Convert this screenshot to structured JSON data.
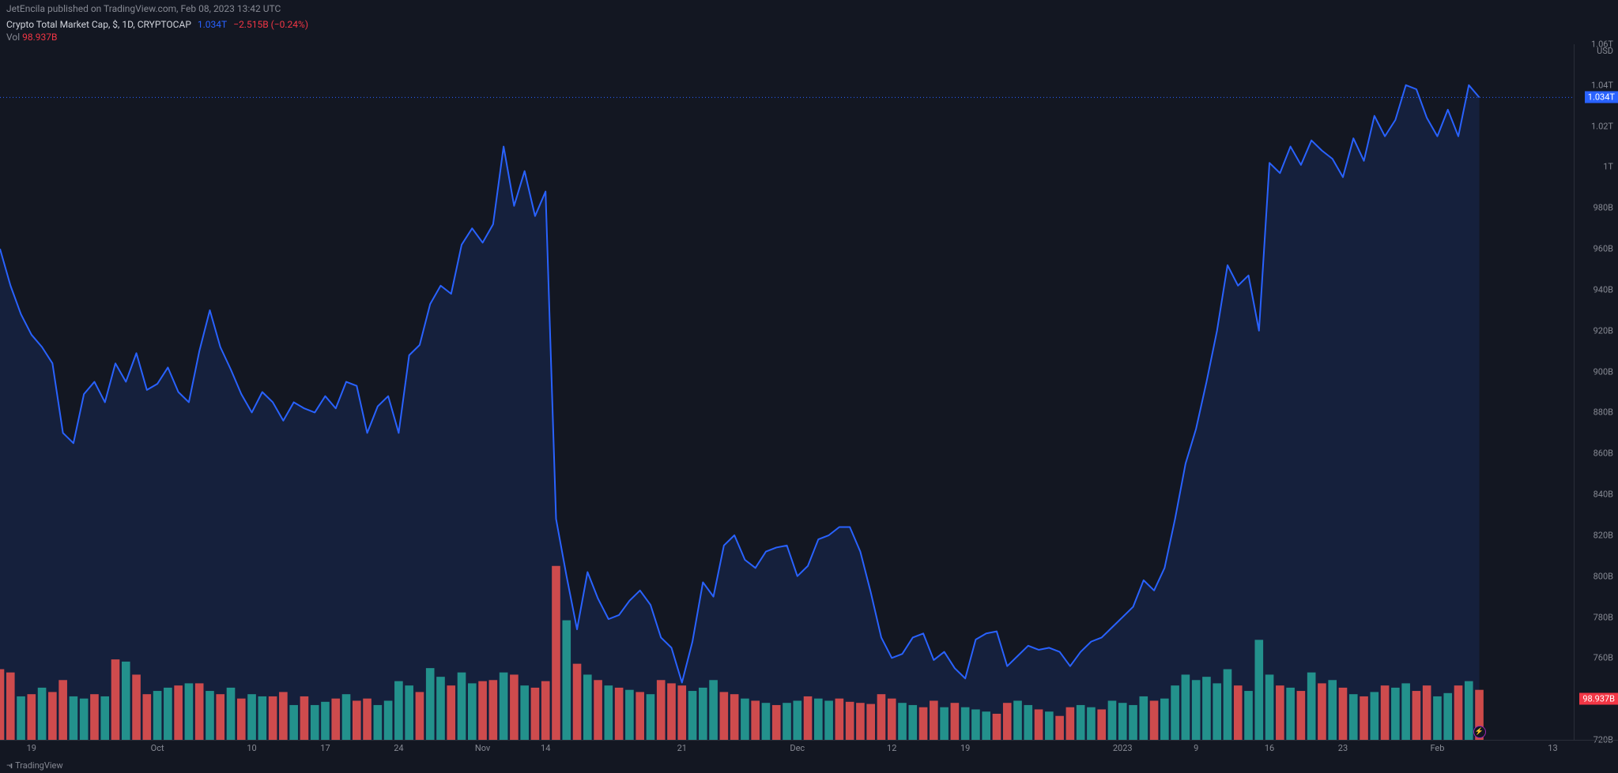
{
  "header": {
    "publish_text": "JetEncila published on TradingView.com, Feb 08, 2023 13:42 UTC"
  },
  "legend": {
    "symbol": "Crypto Total Market Cap, $, 1D, CRYPTOCAP",
    "price": "1.034T",
    "change": "−2.515B (−0.24%)"
  },
  "volume_legend": {
    "label": "Vol",
    "value": "98.937B"
  },
  "footer": {
    "brand": "TradingView"
  },
  "chart": {
    "type": "area+bar",
    "background_color": "#131722",
    "grid_color": "#2a2e39",
    "line_color": "#2962ff",
    "area_fill_color": "rgba(41,98,255,0.12)",
    "line_width": 2,
    "vol_up_color": "#26a69a",
    "vol_down_color": "#ef5350",
    "currency_label": "USD",
    "y_min": 720,
    "y_max": 1060,
    "y_ticks": [
      {
        "v": 720,
        "label": "720B"
      },
      {
        "v": 760,
        "label": "760B"
      },
      {
        "v": 780,
        "label": "780B"
      },
      {
        "v": 800,
        "label": "800B"
      },
      {
        "v": 820,
        "label": "820B"
      },
      {
        "v": 840,
        "label": "840B"
      },
      {
        "v": 860,
        "label": "860B"
      },
      {
        "v": 880,
        "label": "880B"
      },
      {
        "v": 900,
        "label": "900B"
      },
      {
        "v": 920,
        "label": "920B"
      },
      {
        "v": 940,
        "label": "940B"
      },
      {
        "v": 960,
        "label": "960B"
      },
      {
        "v": 980,
        "label": "980B"
      },
      {
        "v": 1000,
        "label": "1T"
      },
      {
        "v": 1020,
        "label": "1.02T"
      },
      {
        "v": 1040,
        "label": "1.04T"
      },
      {
        "v": 1060,
        "label": "1.06T"
      }
    ],
    "price_badge": {
      "v": 1034,
      "label": "1.034T",
      "bg": "#2962ff"
    },
    "vol_badge": {
      "v": 740,
      "label": "98.937B",
      "bg": "#f23645"
    },
    "vol_baseline": 720,
    "vol_max_display": 805,
    "x_ticks": [
      {
        "i": 3,
        "label": "19"
      },
      {
        "i": 15,
        "label": "Oct"
      },
      {
        "i": 24,
        "label": "10"
      },
      {
        "i": 31,
        "label": "17"
      },
      {
        "i": 38,
        "label": "24"
      },
      {
        "i": 46,
        "label": "Nov"
      },
      {
        "i": 52,
        "label": "14"
      },
      {
        "i": 65,
        "label": "21"
      },
      {
        "i": 76,
        "label": "Dec"
      },
      {
        "i": 85,
        "label": "12"
      },
      {
        "i": 92,
        "label": "19"
      },
      {
        "i": 107,
        "label": "2023"
      },
      {
        "i": 114,
        "label": "9"
      },
      {
        "i": 121,
        "label": "16"
      },
      {
        "i": 128,
        "label": "23"
      },
      {
        "i": 137,
        "label": "Feb"
      },
      {
        "i": 148,
        "label": "13"
      }
    ],
    "series": [
      {
        "v": 960,
        "vol": 65,
        "up": false
      },
      {
        "v": 942,
        "vol": 62,
        "up": false
      },
      {
        "v": 928,
        "vol": 40,
        "up": true
      },
      {
        "v": 918,
        "vol": 42,
        "up": false
      },
      {
        "v": 912,
        "vol": 48,
        "up": true
      },
      {
        "v": 904,
        "vol": 44,
        "up": false
      },
      {
        "v": 870,
        "vol": 55,
        "up": false
      },
      {
        "v": 865,
        "vol": 40,
        "up": true
      },
      {
        "v": 889,
        "vol": 38,
        "up": true
      },
      {
        "v": 895,
        "vol": 42,
        "up": false
      },
      {
        "v": 885,
        "vol": 40,
        "up": true
      },
      {
        "v": 904,
        "vol": 74,
        "up": false
      },
      {
        "v": 895,
        "vol": 72,
        "up": true
      },
      {
        "v": 909,
        "vol": 60,
        "up": false
      },
      {
        "v": 891,
        "vol": 42,
        "up": false
      },
      {
        "v": 894,
        "vol": 45,
        "up": true
      },
      {
        "v": 902,
        "vol": 48,
        "up": true
      },
      {
        "v": 890,
        "vol": 50,
        "up": false
      },
      {
        "v": 885,
        "vol": 52,
        "up": true
      },
      {
        "v": 910,
        "vol": 52,
        "up": false
      },
      {
        "v": 930,
        "vol": 45,
        "up": true
      },
      {
        "v": 912,
        "vol": 42,
        "up": false
      },
      {
        "v": 901,
        "vol": 48,
        "up": true
      },
      {
        "v": 889,
        "vol": 38,
        "up": false
      },
      {
        "v": 880,
        "vol": 42,
        "up": true
      },
      {
        "v": 890,
        "vol": 40,
        "up": true
      },
      {
        "v": 885,
        "vol": 40,
        "up": false
      },
      {
        "v": 876,
        "vol": 44,
        "up": false
      },
      {
        "v": 885,
        "vol": 32,
        "up": true
      },
      {
        "v": 882,
        "vol": 40,
        "up": false
      },
      {
        "v": 880,
        "vol": 32,
        "up": true
      },
      {
        "v": 888,
        "vol": 35,
        "up": true
      },
      {
        "v": 882,
        "vol": 38,
        "up": false
      },
      {
        "v": 895,
        "vol": 42,
        "up": true
      },
      {
        "v": 893,
        "vol": 36,
        "up": false
      },
      {
        "v": 870,
        "vol": 38,
        "up": false
      },
      {
        "v": 883,
        "vol": 32,
        "up": true
      },
      {
        "v": 888,
        "vol": 36,
        "up": true
      },
      {
        "v": 870,
        "vol": 54,
        "up": true
      },
      {
        "v": 908,
        "vol": 50,
        "up": true
      },
      {
        "v": 913,
        "vol": 44,
        "up": false
      },
      {
        "v": 933,
        "vol": 66,
        "up": true
      },
      {
        "v": 942,
        "vol": 58,
        "up": true
      },
      {
        "v": 938,
        "vol": 50,
        "up": false
      },
      {
        "v": 962,
        "vol": 62,
        "up": true
      },
      {
        "v": 970,
        "vol": 52,
        "up": true
      },
      {
        "v": 963,
        "vol": 54,
        "up": false
      },
      {
        "v": 972,
        "vol": 55,
        "up": false
      },
      {
        "v": 1010,
        "vol": 62,
        "up": true
      },
      {
        "v": 981,
        "vol": 60,
        "up": false
      },
      {
        "v": 998,
        "vol": 50,
        "up": true
      },
      {
        "v": 976,
        "vol": 48,
        "up": false
      },
      {
        "v": 988,
        "vol": 54,
        "up": false
      },
      {
        "v": 828,
        "vol": 160,
        "up": false
      },
      {
        "v": 800,
        "vol": 110,
        "up": true
      },
      {
        "v": 774,
        "vol": 70,
        "up": false
      },
      {
        "v": 802,
        "vol": 60,
        "up": true
      },
      {
        "v": 789,
        "vol": 55,
        "up": false
      },
      {
        "v": 779,
        "vol": 50,
        "up": true
      },
      {
        "v": 781,
        "vol": 48,
        "up": false
      },
      {
        "v": 788,
        "vol": 46,
        "up": true
      },
      {
        "v": 793,
        "vol": 44,
        "up": false
      },
      {
        "v": 786,
        "vol": 42,
        "up": true
      },
      {
        "v": 770,
        "vol": 55,
        "up": false
      },
      {
        "v": 765,
        "vol": 52,
        "up": false
      },
      {
        "v": 748,
        "vol": 50,
        "up": false
      },
      {
        "v": 768,
        "vol": 45,
        "up": true
      },
      {
        "v": 797,
        "vol": 48,
        "up": true
      },
      {
        "v": 790,
        "vol": 55,
        "up": true
      },
      {
        "v": 815,
        "vol": 44,
        "up": false
      },
      {
        "v": 820,
        "vol": 42,
        "up": false
      },
      {
        "v": 808,
        "vol": 38,
        "up": true
      },
      {
        "v": 804,
        "vol": 36,
        "up": false
      },
      {
        "v": 812,
        "vol": 34,
        "up": true
      },
      {
        "v": 814,
        "vol": 32,
        "up": false
      },
      {
        "v": 815,
        "vol": 34,
        "up": true
      },
      {
        "v": 800,
        "vol": 36,
        "up": true
      },
      {
        "v": 805,
        "vol": 40,
        "up": false
      },
      {
        "v": 818,
        "vol": 38,
        "up": true
      },
      {
        "v": 820,
        "vol": 36,
        "up": true
      },
      {
        "v": 824,
        "vol": 38,
        "up": false
      },
      {
        "v": 824,
        "vol": 35,
        "up": false
      },
      {
        "v": 812,
        "vol": 34,
        "up": false
      },
      {
        "v": 792,
        "vol": 33,
        "up": false
      },
      {
        "v": 770,
        "vol": 42,
        "up": false
      },
      {
        "v": 760,
        "vol": 38,
        "up": false
      },
      {
        "v": 762,
        "vol": 34,
        "up": true
      },
      {
        "v": 770,
        "vol": 32,
        "up": true
      },
      {
        "v": 772,
        "vol": 30,
        "up": false
      },
      {
        "v": 759,
        "vol": 36,
        "up": false
      },
      {
        "v": 763,
        "vol": 30,
        "up": true
      },
      {
        "v": 755,
        "vol": 34,
        "up": false
      },
      {
        "v": 750,
        "vol": 30,
        "up": true
      },
      {
        "v": 769,
        "vol": 28,
        "up": true
      },
      {
        "v": 772,
        "vol": 26,
        "up": true
      },
      {
        "v": 773,
        "vol": 24,
        "up": false
      },
      {
        "v": 756,
        "vol": 34,
        "up": false
      },
      {
        "v": 761,
        "vol": 36,
        "up": true
      },
      {
        "v": 766,
        "vol": 32,
        "up": true
      },
      {
        "v": 764,
        "vol": 28,
        "up": false
      },
      {
        "v": 765,
        "vol": 26,
        "up": true
      },
      {
        "v": 763,
        "vol": 22,
        "up": false
      },
      {
        "v": 756,
        "vol": 30,
        "up": false
      },
      {
        "v": 763,
        "vol": 32,
        "up": true
      },
      {
        "v": 768,
        "vol": 30,
        "up": true
      },
      {
        "v": 770,
        "vol": 28,
        "up": false
      },
      {
        "v": 775,
        "vol": 36,
        "up": true
      },
      {
        "v": 780,
        "vol": 34,
        "up": true
      },
      {
        "v": 785,
        "vol": 32,
        "up": true
      },
      {
        "v": 798,
        "vol": 40,
        "up": true
      },
      {
        "v": 793,
        "vol": 36,
        "up": false
      },
      {
        "v": 804,
        "vol": 38,
        "up": true
      },
      {
        "v": 828,
        "vol": 50,
        "up": true
      },
      {
        "v": 855,
        "vol": 60,
        "up": true
      },
      {
        "v": 872,
        "vol": 55,
        "up": true
      },
      {
        "v": 895,
        "vol": 58,
        "up": true
      },
      {
        "v": 920,
        "vol": 52,
        "up": true
      },
      {
        "v": 952,
        "vol": 65,
        "up": true
      },
      {
        "v": 942,
        "vol": 50,
        "up": false
      },
      {
        "v": 947,
        "vol": 45,
        "up": true
      },
      {
        "v": 920,
        "vol": 92,
        "up": true
      },
      {
        "v": 1002,
        "vol": 60,
        "up": true
      },
      {
        "v": 997,
        "vol": 50,
        "up": false
      },
      {
        "v": 1010,
        "vol": 48,
        "up": true
      },
      {
        "v": 1001,
        "vol": 45,
        "up": false
      },
      {
        "v": 1013,
        "vol": 62,
        "up": true
      },
      {
        "v": 1008,
        "vol": 52,
        "up": false
      },
      {
        "v": 1004,
        "vol": 55,
        "up": true
      },
      {
        "v": 995,
        "vol": 48,
        "up": false
      },
      {
        "v": 1014,
        "vol": 42,
        "up": true
      },
      {
        "v": 1003,
        "vol": 40,
        "up": false
      },
      {
        "v": 1025,
        "vol": 44,
        "up": true
      },
      {
        "v": 1015,
        "vol": 50,
        "up": false
      },
      {
        "v": 1023,
        "vol": 48,
        "up": true
      },
      {
        "v": 1040,
        "vol": 52,
        "up": true
      },
      {
        "v": 1038,
        "vol": 45,
        "up": false
      },
      {
        "v": 1024,
        "vol": 50,
        "up": false
      },
      {
        "v": 1015,
        "vol": 40,
        "up": true
      },
      {
        "v": 1028,
        "vol": 43,
        "up": true
      },
      {
        "v": 1015,
        "vol": 50,
        "up": false
      },
      {
        "v": 1040,
        "vol": 54,
        "up": true
      },
      {
        "v": 1034,
        "vol": 46,
        "up": false
      }
    ]
  }
}
